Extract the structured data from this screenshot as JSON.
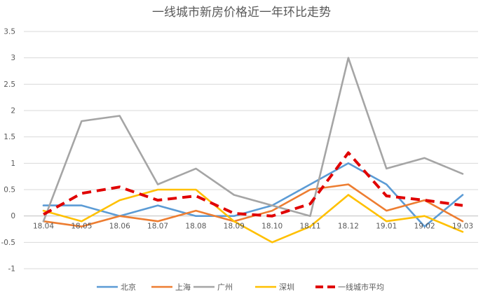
{
  "chart_data": {
    "type": "line",
    "title": "一线城市新房价格近一年环比走势",
    "categories": [
      "18.04",
      "18.05",
      "18.06",
      "18.07",
      "18.08",
      "18.09",
      "18.10",
      "18.11",
      "18.12",
      "19.01",
      "19.02",
      "19.03"
    ],
    "ylim": [
      -1,
      3.5
    ],
    "yticks": [
      -1,
      -0.5,
      0,
      0.5,
      1,
      1.5,
      2,
      2.5,
      3,
      3.5
    ],
    "ytick_labels": [
      "-1",
      "-0.5",
      "0",
      "0.5",
      "1",
      "1.5",
      "2",
      "2.5",
      "3",
      "3.5"
    ],
    "grid": true,
    "legend_position": "bottom",
    "series": [
      {
        "name": "北京",
        "color": "#5B9BD5",
        "dashed": false,
        "values": [
          0.2,
          0.2,
          0,
          0.2,
          0,
          0,
          0.2,
          0.6,
          1.0,
          0.6,
          -0.2,
          0.4
        ]
      },
      {
        "name": "上海",
        "color": "#ED7D31",
        "dashed": false,
        "values": [
          -0.1,
          -0.2,
          0,
          -0.1,
          0.1,
          -0.1,
          0.1,
          0.5,
          0.6,
          0.1,
          0.3,
          -0.1
        ]
      },
      {
        "name": "广州",
        "color": "#A5A5A5",
        "dashed": false,
        "values": [
          -0.1,
          1.8,
          1.9,
          0.6,
          0.9,
          0.4,
          0.2,
          0,
          3.0,
          0.9,
          1.1,
          0.8
        ]
      },
      {
        "name": "深圳",
        "color": "#FFC000",
        "dashed": false,
        "values": [
          0.1,
          -0.1,
          0.3,
          0.5,
          0.5,
          -0.1,
          -0.5,
          -0.2,
          0.4,
          -0.1,
          0,
          -0.3
        ]
      },
      {
        "name": "一线城市平均",
        "color": "#E00000",
        "dashed": true,
        "values": [
          0.03,
          0.43,
          0.55,
          0.3,
          0.38,
          0.05,
          0,
          0.23,
          1.2,
          0.38,
          0.3,
          0.2
        ]
      }
    ]
  }
}
